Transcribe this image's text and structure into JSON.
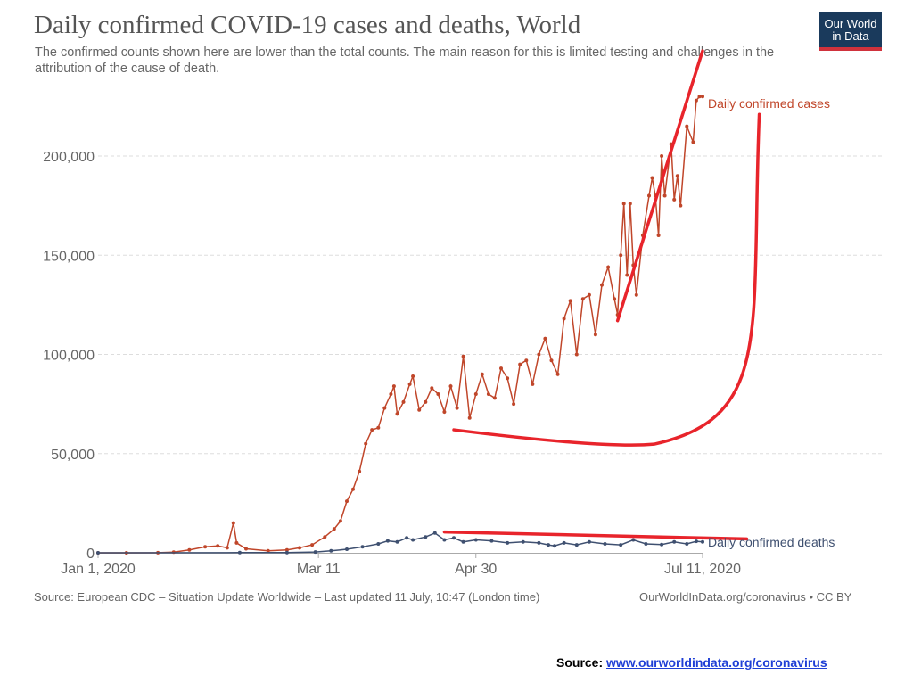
{
  "chart": {
    "title": "Daily confirmed COVID-19 cases and deaths, World",
    "subtitle": "The confirmed counts shown here are lower than the total counts. The main reason for this is limited testing and challenges in the attribution of the cause of death.",
    "logo_line1": "Our World",
    "logo_line2": "in Data",
    "footer_left": "Source: European CDC – Situation Update Worldwide – Last updated 11 July, 10:47 (London time)",
    "footer_right": "OurWorldInData.org/coronavirus • CC BY"
  },
  "page_source": {
    "label": "Source:",
    "link": "www.ourworldindata.org/coronavirus"
  },
  "colors": {
    "cases": "#c0462a",
    "deaths": "#3f5070",
    "annotation": "#e8242b"
  },
  "chart_data": {
    "type": "line",
    "title": "Daily confirmed COVID-19 cases and deaths, World",
    "x_ticks": [
      "Jan 1, 2020",
      "Mar 11",
      "Apr 30",
      "Jul 11, 2020"
    ],
    "x_range": [
      "2020-01-01",
      "2020-07-11"
    ],
    "y_ticks": [
      "0",
      "50,000",
      "100,000",
      "150,000",
      "200,000"
    ],
    "ylim": [
      0,
      225000
    ],
    "grid": "horizontal dashed",
    "series": [
      {
        "name": "Daily confirmed cases",
        "color": "#c0462a",
        "points": [
          [
            "2020-01-01",
            0
          ],
          [
            "2020-01-10",
            0
          ],
          [
            "2020-01-20",
            50
          ],
          [
            "2020-01-25",
            300
          ],
          [
            "2020-01-30",
            1500
          ],
          [
            "2020-02-04",
            3000
          ],
          [
            "2020-02-08",
            3500
          ],
          [
            "2020-02-11",
            2500
          ],
          [
            "2020-02-13",
            15000
          ],
          [
            "2020-02-14",
            5000
          ],
          [
            "2020-02-17",
            2000
          ],
          [
            "2020-02-24",
            1000
          ],
          [
            "2020-03-01",
            1500
          ],
          [
            "2020-03-05",
            2500
          ],
          [
            "2020-03-09",
            4000
          ],
          [
            "2020-03-13",
            8000
          ],
          [
            "2020-03-16",
            12000
          ],
          [
            "2020-03-18",
            16000
          ],
          [
            "2020-03-20",
            26000
          ],
          [
            "2020-03-22",
            32000
          ],
          [
            "2020-03-24",
            41000
          ],
          [
            "2020-03-26",
            55000
          ],
          [
            "2020-03-28",
            62000
          ],
          [
            "2020-03-30",
            63000
          ],
          [
            "2020-04-01",
            73000
          ],
          [
            "2020-04-03",
            80000
          ],
          [
            "2020-04-04",
            84000
          ],
          [
            "2020-04-05",
            70000
          ],
          [
            "2020-04-07",
            76000
          ],
          [
            "2020-04-09",
            85000
          ],
          [
            "2020-04-10",
            89000
          ],
          [
            "2020-04-12",
            72000
          ],
          [
            "2020-04-14",
            76000
          ],
          [
            "2020-04-16",
            83000
          ],
          [
            "2020-04-18",
            80000
          ],
          [
            "2020-04-20",
            71000
          ],
          [
            "2020-04-22",
            84000
          ],
          [
            "2020-04-24",
            73000
          ],
          [
            "2020-04-26",
            99000
          ],
          [
            "2020-04-28",
            68000
          ],
          [
            "2020-04-30",
            80000
          ],
          [
            "2020-05-02",
            90000
          ],
          [
            "2020-05-04",
            80000
          ],
          [
            "2020-05-06",
            78000
          ],
          [
            "2020-05-08",
            93000
          ],
          [
            "2020-05-10",
            88000
          ],
          [
            "2020-05-12",
            75000
          ],
          [
            "2020-05-14",
            95000
          ],
          [
            "2020-05-16",
            97000
          ],
          [
            "2020-05-18",
            85000
          ],
          [
            "2020-05-20",
            100000
          ],
          [
            "2020-05-22",
            108000
          ],
          [
            "2020-05-24",
            97000
          ],
          [
            "2020-05-26",
            90000
          ],
          [
            "2020-05-28",
            118000
          ],
          [
            "2020-05-30",
            127000
          ],
          [
            "2020-06-01",
            100000
          ],
          [
            "2020-06-03",
            128000
          ],
          [
            "2020-06-05",
            130000
          ],
          [
            "2020-06-07",
            110000
          ],
          [
            "2020-06-09",
            135000
          ],
          [
            "2020-06-11",
            144000
          ],
          [
            "2020-06-13",
            128000
          ],
          [
            "2020-06-14",
            120000
          ],
          [
            "2020-06-15",
            150000
          ],
          [
            "2020-06-16",
            176000
          ],
          [
            "2020-06-17",
            140000
          ],
          [
            "2020-06-18",
            176000
          ],
          [
            "2020-06-19",
            145000
          ],
          [
            "2020-06-20",
            130000
          ],
          [
            "2020-06-22",
            160000
          ],
          [
            "2020-06-24",
            180000
          ],
          [
            "2020-06-25",
            189000
          ],
          [
            "2020-06-26",
            180000
          ],
          [
            "2020-06-27",
            160000
          ],
          [
            "2020-06-28",
            200000
          ],
          [
            "2020-06-29",
            180000
          ],
          [
            "2020-07-01",
            206000
          ],
          [
            "2020-07-02",
            178000
          ],
          [
            "2020-07-03",
            190000
          ],
          [
            "2020-07-04",
            175000
          ],
          [
            "2020-07-06",
            215000
          ],
          [
            "2020-07-08",
            207000
          ],
          [
            "2020-07-09",
            228000
          ],
          [
            "2020-07-10",
            230000
          ],
          [
            "2020-07-11",
            230000
          ]
        ]
      },
      {
        "name": "Daily confirmed deaths",
        "color": "#3f5070",
        "points": [
          [
            "2020-01-01",
            0
          ],
          [
            "2020-02-15",
            100
          ],
          [
            "2020-03-01",
            150
          ],
          [
            "2020-03-10",
            400
          ],
          [
            "2020-03-15",
            1000
          ],
          [
            "2020-03-20",
            1800
          ],
          [
            "2020-03-25",
            3000
          ],
          [
            "2020-03-30",
            4500
          ],
          [
            "2020-04-02",
            6000
          ],
          [
            "2020-04-05",
            5500
          ],
          [
            "2020-04-08",
            7500
          ],
          [
            "2020-04-10",
            6500
          ],
          [
            "2020-04-14",
            8000
          ],
          [
            "2020-04-17",
            10000
          ],
          [
            "2020-04-20",
            6500
          ],
          [
            "2020-04-23",
            7500
          ],
          [
            "2020-04-26",
            5500
          ],
          [
            "2020-04-30",
            6500
          ],
          [
            "2020-05-05",
            6000
          ],
          [
            "2020-05-10",
            5000
          ],
          [
            "2020-05-15",
            5500
          ],
          [
            "2020-05-20",
            5000
          ],
          [
            "2020-05-23",
            4000
          ],
          [
            "2020-05-25",
            3500
          ],
          [
            "2020-05-28",
            5000
          ],
          [
            "2020-06-01",
            4000
          ],
          [
            "2020-06-05",
            5500
          ],
          [
            "2020-06-10",
            4500
          ],
          [
            "2020-06-15",
            4000
          ],
          [
            "2020-06-19",
            6500
          ],
          [
            "2020-06-23",
            4500
          ],
          [
            "2020-06-28",
            4200
          ],
          [
            "2020-07-02",
            5500
          ],
          [
            "2020-07-06",
            4500
          ],
          [
            "2020-07-09",
            5800
          ],
          [
            "2020-07-11",
            5500
          ]
        ]
      }
    ],
    "annotations": [
      {
        "kind": "line",
        "from": [
          "2020-06-14",
          117000
        ],
        "to": [
          "2020-07-11",
          253000
        ]
      },
      {
        "kind": "curve",
        "from": [
          "2020-04-23",
          62000
        ],
        "via": [
          "2020-06-10",
          57000
        ],
        "to": [
          "2020-07-29",
          221000
        ]
      },
      {
        "kind": "line",
        "from": [
          "2020-04-20",
          10500
        ],
        "to": [
          "2020-07-25",
          7000
        ]
      }
    ]
  }
}
